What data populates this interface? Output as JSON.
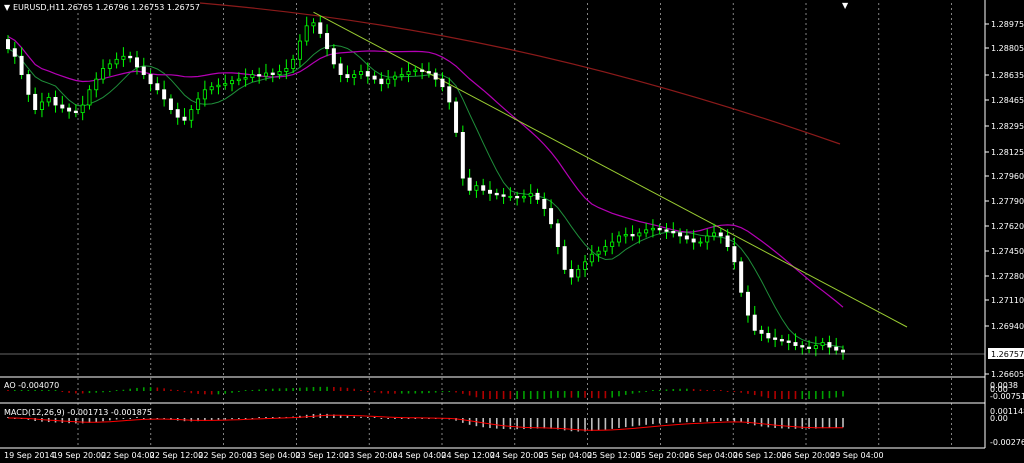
{
  "header": {
    "symbol": "EURUSD,H1",
    "ohlc": "1.26765 1.26796 1.26753 1.26757"
  },
  "colors": {
    "background": "#000000",
    "bull": "#00ff00",
    "bear": "#ffffff",
    "ma_purple": "#b400b4",
    "ma_green": "#1f8f3a",
    "ma_darkred": "#8b1a1a",
    "trendline": "#9acd32",
    "ao_up": "#00a000",
    "ao_down": "#b00000",
    "macd_hist": "#c0c0c0",
    "macd_signal": "#ff0000"
  },
  "price_axis": {
    "labels": [
      "1.28975",
      "1.28805",
      "1.28635",
      "1.28465",
      "1.28295",
      "1.28125",
      "1.27960",
      "1.27790",
      "1.27620",
      "1.27450",
      "1.27280",
      "1.27110",
      "1.26940",
      "1.26605"
    ],
    "current_price": "1.26757"
  },
  "time_axis": {
    "labels": [
      "19 Sep 2014",
      "19 Sep 20:00",
      "22 Sep 04:00",
      "22 Sep 12:00",
      "22 Sep 20:00",
      "23 Sep 04:00",
      "23 Sep 12:00",
      "23 Sep 20:00",
      "24 Sep 04:00",
      "24 Sep 12:00",
      "24 Sep 20:00",
      "25 Sep 04:00",
      "25 Sep 12:00",
      "25 Sep 20:00",
      "26 Sep 04:00",
      "26 Sep 12:00",
      "26 Sep 20:00",
      "29 Sep 04:00"
    ]
  },
  "ao": {
    "label": "AO -0.004070",
    "axis_labels": [
      "0.0038",
      "0.00",
      "-0.00751"
    ]
  },
  "macd": {
    "label": "MACD(12,26,9) -0.001713 -0.001875",
    "axis_labels": [
      "0.001148",
      "0.00",
      "-0.002765"
    ]
  },
  "chart_data": {
    "type": "candlestick",
    "symbol": "EURUSD",
    "timeframe": "H1",
    "ylim": [
      1.266,
      1.2905
    ],
    "closes": [
      1.2875,
      1.287,
      1.2858,
      1.2845,
      1.2835,
      1.284,
      1.2843,
      1.2838,
      1.2836,
      1.2834,
      1.2833,
      1.2838,
      1.2848,
      1.2855,
      1.2862,
      1.2865,
      1.2868,
      1.287,
      1.2869,
      1.2863,
      1.2858,
      1.2852,
      1.2848,
      1.2842,
      1.2835,
      1.283,
      1.2828,
      1.2835,
      1.2842,
      1.2848,
      1.285,
      1.2851,
      1.2852,
      1.2854,
      1.2855,
      1.2856,
      1.2858,
      1.2857,
      1.2859,
      1.2858,
      1.286,
      1.2862,
      1.2868,
      1.288,
      1.289,
      1.2892,
      1.2885,
      1.2875,
      1.2865,
      1.2858,
      1.2856,
      1.2858,
      1.286,
      1.2857,
      1.2855,
      1.2852,
      1.2855,
      1.2857,
      1.2858,
      1.286,
      1.2861,
      1.286,
      1.2859,
      1.2855,
      1.285,
      1.284,
      1.282,
      1.279,
      1.2782,
      1.2785,
      1.2782,
      1.278,
      1.2779,
      1.2778,
      1.2778,
      1.2777,
      1.2778,
      1.278,
      1.2776,
      1.277,
      1.276,
      1.2745,
      1.273,
      1.2725,
      1.273,
      1.2735,
      1.274,
      1.2742,
      1.2745,
      1.2748,
      1.2752,
      1.2753,
      1.2752,
      1.2754,
      1.2756,
      1.2757,
      1.2756,
      1.2755,
      1.2754,
      1.2752,
      1.275,
      1.2748,
      1.2748,
      1.2752,
      1.2754,
      1.2752,
      1.2745,
      1.2735,
      1.2715,
      1.27,
      1.269,
      1.2688,
      1.2685,
      1.2684,
      1.2683,
      1.2682,
      1.268,
      1.2679,
      1.2678,
      1.268,
      1.2682,
      1.2679,
      1.2677,
      1.26757
    ]
  }
}
